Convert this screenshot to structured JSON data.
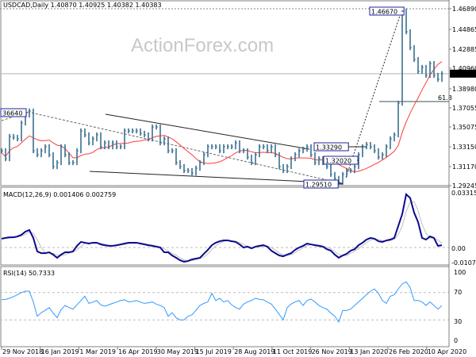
{
  "header": {
    "title": "USDCAD,Daily  1.40870 1.40925 1.40382 1.40383"
  },
  "watermark": "ActionForex.com",
  "colors": {
    "bars": "#3a6f8f",
    "ma": "#ff3b3b",
    "macd": "#0a0a8c",
    "signal": "#c0c0c0",
    "rsi": "#3399ff",
    "label_border": "#2020a0",
    "current_price_bg": "#000000"
  },
  "chart_data": [
    {
      "type": "ohlc-bar",
      "name": "price",
      "x_tick_labels": [
        "29 Nov 2018",
        "16 Jan 2019",
        "1 Mar 2019",
        "16 Apr 2019",
        "30 May 2019",
        "15 Jul 2019",
        "28 Aug 2019",
        "11 Oct 2019",
        "26 Nov 2019",
        "13 Jan 2020",
        "26 Feb 2020",
        "10 Apr 2020"
      ],
      "y_tick_labels": [
        "1.46890",
        "1.44865",
        "1.42885",
        "1.40960",
        "1.38980",
        "1.37055",
        "1.35075",
        "1.33150",
        "1.31170",
        "1.29245"
      ],
      "current_price": "1.40383",
      "ylim": [
        1.29245,
        1.4689
      ],
      "closes": [
        1.3266,
        1.3186,
        1.3409,
        1.34,
        1.3385,
        1.3544,
        1.3624,
        1.3664,
        1.3266,
        1.3226,
        1.3266,
        1.3306,
        1.3226,
        1.3107,
        1.3147,
        1.3306,
        1.3226,
        1.3147,
        1.3147,
        1.3266,
        1.3465,
        1.3425,
        1.3345,
        1.3385,
        1.3425,
        1.3306,
        1.3345,
        1.3306,
        1.3345,
        1.3306,
        1.3306,
        1.3465,
        1.3465,
        1.3465,
        1.3465,
        1.3441,
        1.3425,
        1.3385,
        1.3504,
        1.3504,
        1.3345,
        1.3385,
        1.3266,
        1.3266,
        1.3147,
        1.3107,
        1.3067,
        1.3067,
        1.3043,
        1.3091,
        1.3147,
        1.3226,
        1.3306,
        1.3306,
        1.3306,
        1.3266,
        1.3306,
        1.3306,
        1.3306,
        1.3345,
        1.3266,
        1.3266,
        1.3202,
        1.3147,
        1.3226,
        1.3306,
        1.3306,
        1.3266,
        1.3306,
        1.3226,
        1.3107,
        1.3067,
        1.3107,
        1.3186,
        1.3226,
        1.3266,
        1.3282,
        1.3306,
        1.3226,
        1.3147,
        1.3186,
        1.3147,
        1.3107,
        1.3028,
        1.2988,
        1.2951,
        1.3028,
        1.3067,
        1.3067,
        1.3107,
        1.3226,
        1.3306,
        1.3329,
        1.3306,
        1.3266,
        1.3202,
        1.3226,
        1.3306,
        1.3385,
        1.3425,
        1.3743,
        1.4667,
        1.4458,
        1.4299,
        1.418,
        1.4061,
        1.4101,
        1.4021,
        1.414,
        1.4021,
        1.3981,
        1.4038
      ],
      "annotations": [
        "36640",
        "1.46670",
        "1.33290",
        "1.32020",
        "1.29510",
        "61.8"
      ]
    },
    {
      "type": "line",
      "name": "MACD(12,26,9) 0.001406 0.002759",
      "y_tick_labels": [
        "0.033155",
        "0.00",
        "-0.010769"
      ],
      "ylim": [
        -0.010769,
        0.033155
      ],
      "values": [
        0.0053,
        0.0058,
        0.0062,
        0.0062,
        0.0067,
        0.0077,
        0.0096,
        0.0106,
        0.0058,
        -0.0024,
        -0.0034,
        -0.0034,
        -0.0029,
        -0.0043,
        -0.0062,
        -0.0043,
        -0.0029,
        -0.0029,
        -0.0024,
        0.001,
        0.0034,
        0.0029,
        0.0024,
        0.0029,
        0.0029,
        0.0019,
        0.0014,
        0.001,
        0.001,
        0.0014,
        0.0019,
        0.0024,
        0.0029,
        0.0029,
        0.0029,
        0.0024,
        0.0019,
        0.0014,
        0.001,
        0.0005,
        0.0,
        -0.0029,
        -0.0029,
        -0.0048,
        -0.0062,
        -0.0077,
        -0.0086,
        -0.0082,
        -0.0072,
        -0.0067,
        -0.0062,
        -0.0038,
        -0.0014,
        0.0014,
        0.0029,
        0.0038,
        0.0043,
        0.0043,
        0.0038,
        0.0034,
        0.0019,
        0.0,
        0.0005,
        -0.0005,
        0.0005,
        0.001,
        0.0014,
        0.0005,
        -0.0019,
        -0.0034,
        -0.0048,
        -0.0053,
        -0.0043,
        -0.0034,
        -0.0014,
        0.0,
        0.001,
        0.0024,
        0.0019,
        0.0014,
        0.001,
        0.0005,
        -0.001,
        -0.0019,
        -0.0043,
        -0.0062,
        -0.0048,
        -0.0038,
        -0.0019,
        -0.001,
        0.0014,
        0.0029,
        0.0048,
        0.0058,
        0.0053,
        0.0038,
        0.0034,
        0.0043,
        0.0048,
        0.0058,
        0.013,
        0.0202,
        0.0322,
        0.03,
        0.0211,
        0.0154,
        0.0058,
        0.0048,
        0.0067,
        0.0058,
        0.001,
        0.0014
      ]
    },
    {
      "type": "line",
      "name": "RSI(14) 50.7333",
      "y_tick_labels": [
        "100",
        "70",
        "30",
        "0"
      ],
      "ylim": [
        0,
        100
      ],
      "levels": [
        70,
        30
      ],
      "values": [
        59.5,
        60,
        61.6,
        64,
        66.8,
        70,
        72.1,
        72.1,
        56.3,
        35.3,
        40.5,
        44,
        47.9,
        40,
        33.2,
        45,
        51.1,
        48,
        45.8,
        52,
        58.4,
        64.7,
        54.2,
        56,
        58.4,
        52,
        50,
        52,
        54.2,
        56,
        58.4,
        59.5,
        56.3,
        57,
        58.4,
        56,
        54.2,
        55,
        56.3,
        53,
        51.1,
        47.9,
        35.3,
        40.5,
        33.2,
        30,
        30,
        35.3,
        37.4,
        44,
        51.1,
        54.2,
        56.3,
        68.9,
        58.4,
        61.6,
        56.3,
        58.4,
        52,
        48,
        45.8,
        53.2,
        56.3,
        58.4,
        61.6,
        60,
        59.5,
        56,
        53.2,
        45.8,
        38,
        30,
        47.9,
        53.2,
        56.3,
        58.4,
        51.1,
        58.4,
        60.5,
        56.3,
        51.1,
        48,
        45.8,
        40,
        35.3,
        26.8,
        43.7,
        43.7,
        45.8,
        51.1,
        56.3,
        61.6,
        66.8,
        72.1,
        75.3,
        68.9,
        58.4,
        54.2,
        64.7,
        66.8,
        75.3,
        82.6,
        85.8,
        77.4,
        58.4,
        58.4,
        56.3,
        51.1,
        56.3,
        51.1,
        45.8,
        50.7
      ]
    }
  ]
}
